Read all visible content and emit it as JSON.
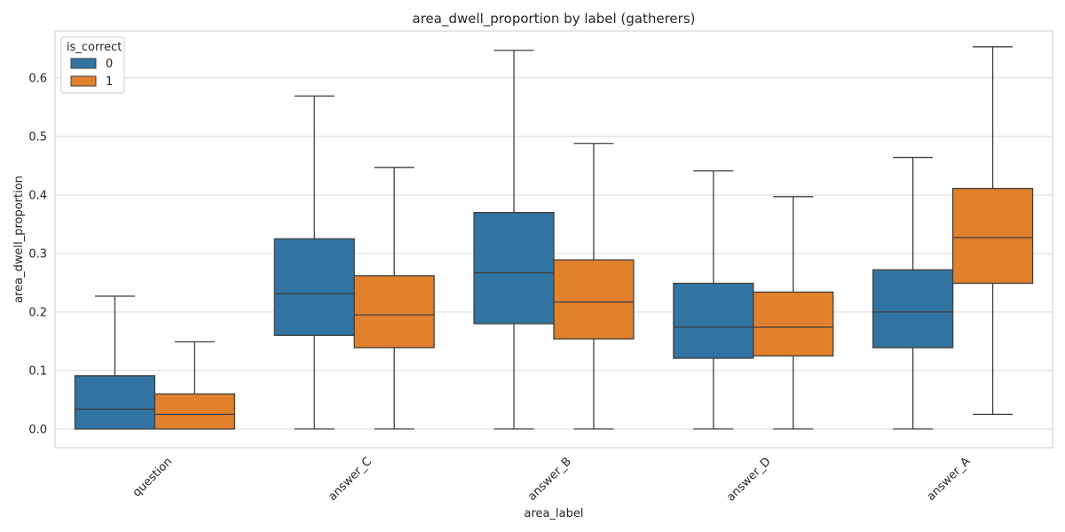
{
  "chart_data": {
    "type": "box",
    "title": "area_dwell_proportion by label (gatherers)",
    "xlabel": "area_label",
    "ylabel": "area_dwell_proportion",
    "categories": [
      "question",
      "answer_C",
      "answer_B",
      "answer_D",
      "answer_A"
    ],
    "ylim": [
      -0.032,
      0.68
    ],
    "yticks": [
      0.0,
      0.1,
      0.2,
      0.3,
      0.4,
      0.5,
      0.6
    ],
    "ytick_labels": [
      "0.0",
      "0.1",
      "0.2",
      "0.3",
      "0.4",
      "0.5",
      "0.6"
    ],
    "grid": true,
    "legend": {
      "title": "is_correct",
      "placement": "top-left"
    },
    "series": [
      {
        "name": "0",
        "color": "#3274a1",
        "boxes": [
          {
            "min": 0.0,
            "q1": 0.0,
            "median": 0.034,
            "q3": 0.091,
            "max": 0.227
          },
          {
            "min": 0.0,
            "q1": 0.16,
            "median": 0.231,
            "q3": 0.325,
            "max": 0.569
          },
          {
            "min": 0.0,
            "q1": 0.18,
            "median": 0.267,
            "q3": 0.37,
            "max": 0.647
          },
          {
            "min": 0.0,
            "q1": 0.121,
            "median": 0.174,
            "q3": 0.249,
            "max": 0.441
          },
          {
            "min": 0.0,
            "q1": 0.139,
            "median": 0.2,
            "q3": 0.272,
            "max": 0.464
          }
        ]
      },
      {
        "name": "1",
        "color": "#e1812c",
        "boxes": [
          {
            "min": 0.0,
            "q1": 0.0,
            "median": 0.025,
            "q3": 0.06,
            "max": 0.149
          },
          {
            "min": 0.0,
            "q1": 0.139,
            "median": 0.195,
            "q3": 0.262,
            "max": 0.447
          },
          {
            "min": 0.0,
            "q1": 0.154,
            "median": 0.217,
            "q3": 0.289,
            "max": 0.488
          },
          {
            "min": 0.0,
            "q1": 0.125,
            "median": 0.174,
            "q3": 0.234,
            "max": 0.397
          },
          {
            "min": 0.025,
            "q1": 0.249,
            "median": 0.327,
            "q3": 0.411,
            "max": 0.653
          }
        ]
      }
    ]
  }
}
